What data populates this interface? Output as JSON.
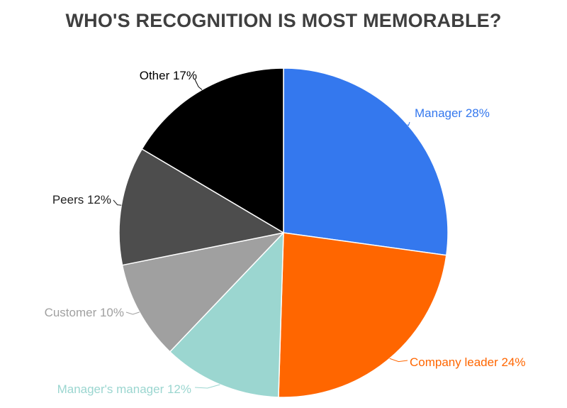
{
  "chart_data": {
    "type": "pie",
    "title": "WHO'S RECOGNITION IS MOST MEMORABLE?",
    "slices": [
      {
        "name": "Manager",
        "value": 28,
        "label": "Manager 28%",
        "color": "#3478ee"
      },
      {
        "name": "Company leader",
        "value": 24,
        "label": "Company leader 24%",
        "color": "#ff6600"
      },
      {
        "name": "Manager's manager",
        "value": 12,
        "label": "Manager's manager 12%",
        "color": "#9bd6d0"
      },
      {
        "name": "Customer",
        "value": 10,
        "label": "Customer 10%",
        "color": "#a0a0a0"
      },
      {
        "name": "Peers",
        "value": 12,
        "label": "Peers 12%",
        "color": "#4d4d4d"
      },
      {
        "name": "Other",
        "value": 17,
        "label": "Other 17%",
        "color": "#000000"
      }
    ],
    "label_colors": {
      "Manager": "#3478ee",
      "Company leader": "#ff6600",
      "Manager's manager": "#9bd6d0",
      "Customer": "#a0a0a0",
      "Peers": "#222222",
      "Other": "#000000"
    },
    "start_angle": "12 o'clock",
    "direction": "clockwise",
    "legend": "none"
  }
}
